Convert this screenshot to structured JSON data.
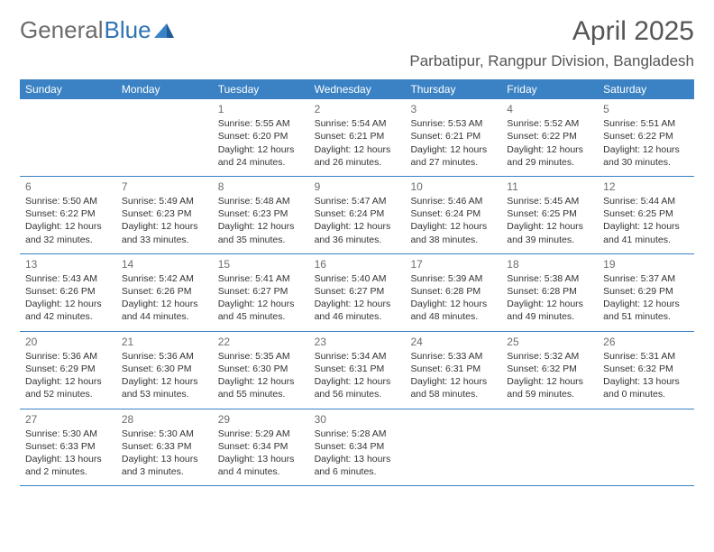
{
  "logo": {
    "text1": "General",
    "text2": "Blue"
  },
  "header": {
    "month_title": "April 2025",
    "location": "Parbatipur, Rangpur Division, Bangladesh"
  },
  "colors": {
    "header_bar": "#3a82c4",
    "header_text": "#ffffff",
    "row_border": "#3a82c4",
    "title_color": "#555555",
    "body_text": "#333333",
    "logo_gray": "#6b6b6b",
    "logo_blue": "#2f73b5",
    "triangle1": "#3a82c4",
    "triangle2": "#1d5a96"
  },
  "days_of_week": [
    "Sunday",
    "Monday",
    "Tuesday",
    "Wednesday",
    "Thursday",
    "Friday",
    "Saturday"
  ],
  "weeks": [
    [
      null,
      null,
      {
        "n": "1",
        "sr": "Sunrise: 5:55 AM",
        "ss": "Sunset: 6:20 PM",
        "dl": "Daylight: 12 hours and 24 minutes."
      },
      {
        "n": "2",
        "sr": "Sunrise: 5:54 AM",
        "ss": "Sunset: 6:21 PM",
        "dl": "Daylight: 12 hours and 26 minutes."
      },
      {
        "n": "3",
        "sr": "Sunrise: 5:53 AM",
        "ss": "Sunset: 6:21 PM",
        "dl": "Daylight: 12 hours and 27 minutes."
      },
      {
        "n": "4",
        "sr": "Sunrise: 5:52 AM",
        "ss": "Sunset: 6:22 PM",
        "dl": "Daylight: 12 hours and 29 minutes."
      },
      {
        "n": "5",
        "sr": "Sunrise: 5:51 AM",
        "ss": "Sunset: 6:22 PM",
        "dl": "Daylight: 12 hours and 30 minutes."
      }
    ],
    [
      {
        "n": "6",
        "sr": "Sunrise: 5:50 AM",
        "ss": "Sunset: 6:22 PM",
        "dl": "Daylight: 12 hours and 32 minutes."
      },
      {
        "n": "7",
        "sr": "Sunrise: 5:49 AM",
        "ss": "Sunset: 6:23 PM",
        "dl": "Daylight: 12 hours and 33 minutes."
      },
      {
        "n": "8",
        "sr": "Sunrise: 5:48 AM",
        "ss": "Sunset: 6:23 PM",
        "dl": "Daylight: 12 hours and 35 minutes."
      },
      {
        "n": "9",
        "sr": "Sunrise: 5:47 AM",
        "ss": "Sunset: 6:24 PM",
        "dl": "Daylight: 12 hours and 36 minutes."
      },
      {
        "n": "10",
        "sr": "Sunrise: 5:46 AM",
        "ss": "Sunset: 6:24 PM",
        "dl": "Daylight: 12 hours and 38 minutes."
      },
      {
        "n": "11",
        "sr": "Sunrise: 5:45 AM",
        "ss": "Sunset: 6:25 PM",
        "dl": "Daylight: 12 hours and 39 minutes."
      },
      {
        "n": "12",
        "sr": "Sunrise: 5:44 AM",
        "ss": "Sunset: 6:25 PM",
        "dl": "Daylight: 12 hours and 41 minutes."
      }
    ],
    [
      {
        "n": "13",
        "sr": "Sunrise: 5:43 AM",
        "ss": "Sunset: 6:26 PM",
        "dl": "Daylight: 12 hours and 42 minutes."
      },
      {
        "n": "14",
        "sr": "Sunrise: 5:42 AM",
        "ss": "Sunset: 6:26 PM",
        "dl": "Daylight: 12 hours and 44 minutes."
      },
      {
        "n": "15",
        "sr": "Sunrise: 5:41 AM",
        "ss": "Sunset: 6:27 PM",
        "dl": "Daylight: 12 hours and 45 minutes."
      },
      {
        "n": "16",
        "sr": "Sunrise: 5:40 AM",
        "ss": "Sunset: 6:27 PM",
        "dl": "Daylight: 12 hours and 46 minutes."
      },
      {
        "n": "17",
        "sr": "Sunrise: 5:39 AM",
        "ss": "Sunset: 6:28 PM",
        "dl": "Daylight: 12 hours and 48 minutes."
      },
      {
        "n": "18",
        "sr": "Sunrise: 5:38 AM",
        "ss": "Sunset: 6:28 PM",
        "dl": "Daylight: 12 hours and 49 minutes."
      },
      {
        "n": "19",
        "sr": "Sunrise: 5:37 AM",
        "ss": "Sunset: 6:29 PM",
        "dl": "Daylight: 12 hours and 51 minutes."
      }
    ],
    [
      {
        "n": "20",
        "sr": "Sunrise: 5:36 AM",
        "ss": "Sunset: 6:29 PM",
        "dl": "Daylight: 12 hours and 52 minutes."
      },
      {
        "n": "21",
        "sr": "Sunrise: 5:36 AM",
        "ss": "Sunset: 6:30 PM",
        "dl": "Daylight: 12 hours and 53 minutes."
      },
      {
        "n": "22",
        "sr": "Sunrise: 5:35 AM",
        "ss": "Sunset: 6:30 PM",
        "dl": "Daylight: 12 hours and 55 minutes."
      },
      {
        "n": "23",
        "sr": "Sunrise: 5:34 AM",
        "ss": "Sunset: 6:31 PM",
        "dl": "Daylight: 12 hours and 56 minutes."
      },
      {
        "n": "24",
        "sr": "Sunrise: 5:33 AM",
        "ss": "Sunset: 6:31 PM",
        "dl": "Daylight: 12 hours and 58 minutes."
      },
      {
        "n": "25",
        "sr": "Sunrise: 5:32 AM",
        "ss": "Sunset: 6:32 PM",
        "dl": "Daylight: 12 hours and 59 minutes."
      },
      {
        "n": "26",
        "sr": "Sunrise: 5:31 AM",
        "ss": "Sunset: 6:32 PM",
        "dl": "Daylight: 13 hours and 0 minutes."
      }
    ],
    [
      {
        "n": "27",
        "sr": "Sunrise: 5:30 AM",
        "ss": "Sunset: 6:33 PM",
        "dl": "Daylight: 13 hours and 2 minutes."
      },
      {
        "n": "28",
        "sr": "Sunrise: 5:30 AM",
        "ss": "Sunset: 6:33 PM",
        "dl": "Daylight: 13 hours and 3 minutes."
      },
      {
        "n": "29",
        "sr": "Sunrise: 5:29 AM",
        "ss": "Sunset: 6:34 PM",
        "dl": "Daylight: 13 hours and 4 minutes."
      },
      {
        "n": "30",
        "sr": "Sunrise: 5:28 AM",
        "ss": "Sunset: 6:34 PM",
        "dl": "Daylight: 13 hours and 6 minutes."
      },
      null,
      null,
      null
    ]
  ]
}
